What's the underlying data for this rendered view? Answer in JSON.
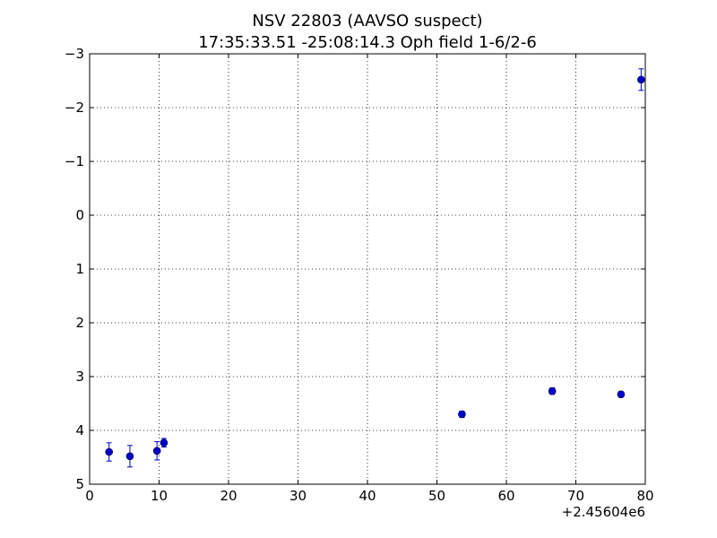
{
  "chart_data": {
    "type": "scatter",
    "title": "NSV 22803 (AAVSO suspect)",
    "subtitle": "17:35:33.51 -25:08:14.3 Oph field 1-6/2-6",
    "xlabel": "",
    "ylabel": "",
    "x_offset_label": "+2.45604e6",
    "xlim": [
      0,
      80
    ],
    "ylim": [
      5,
      -3
    ],
    "y_inverted": true,
    "grid": true,
    "grid_style": "dotted",
    "x_ticks": [
      0,
      10,
      20,
      30,
      40,
      50,
      60,
      70,
      80
    ],
    "x_tick_labels": [
      "0",
      "10",
      "20",
      "30",
      "40",
      "50",
      "60",
      "70",
      "80"
    ],
    "y_ticks": [
      -3,
      -2,
      -1,
      0,
      1,
      2,
      3,
      4,
      5
    ],
    "y_tick_labels": [
      "−3",
      "−2",
      "−1",
      "0",
      "1",
      "2",
      "3",
      "4",
      "5"
    ],
    "marker_color": "#0000cc",
    "points": [
      {
        "x": 2.8,
        "y": 4.4,
        "err": 0.17
      },
      {
        "x": 5.8,
        "y": 4.48,
        "err": 0.2
      },
      {
        "x": 9.7,
        "y": 4.38,
        "err": 0.17
      },
      {
        "x": 10.7,
        "y": 4.23,
        "err": 0.08
      },
      {
        "x": 53.6,
        "y": 3.7,
        "err": 0.06
      },
      {
        "x": 66.6,
        "y": 3.27,
        "err": 0.06
      },
      {
        "x": 76.5,
        "y": 3.33,
        "err": 0.05
      },
      {
        "x": 79.4,
        "y": -2.52,
        "err": 0.2
      }
    ]
  }
}
